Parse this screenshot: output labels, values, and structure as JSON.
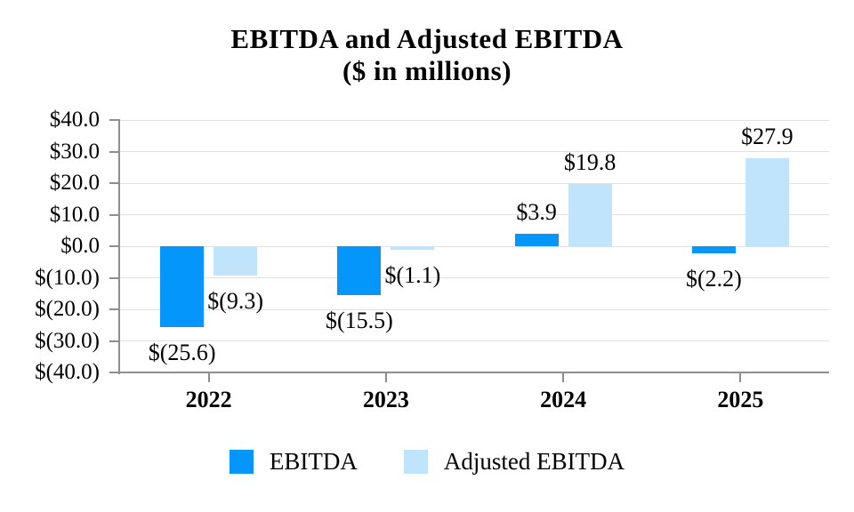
{
  "chart_data": {
    "type": "bar",
    "title": "EBITDA and Adjusted EBITDA",
    "subtitle": "($ in millions)",
    "categories": [
      "2022",
      "2023",
      "2024",
      "2025"
    ],
    "series": [
      {
        "name": "EBITDA",
        "color": "#0496FB",
        "values": [
          -25.6,
          -15.5,
          3.9,
          -2.2
        ],
        "data_labels": [
          "$(25.6)",
          "$(15.5)",
          "$3.9",
          "$(2.2)"
        ]
      },
      {
        "name": "Adjusted EBITDA",
        "color": "#BFE4FC",
        "values": [
          -9.3,
          -1.1,
          19.8,
          27.9
        ],
        "data_labels": [
          "$(9.3)",
          "$(1.1)",
          "$19.8",
          "$27.9"
        ]
      }
    ],
    "ylim": [
      -40,
      40
    ],
    "y_tick_step": 10,
    "y_tick_labels_top_to_bottom": [
      "$40.0",
      "$30.0",
      "$20.0",
      "$10.0",
      "$0.0",
      "$(10.0)",
      "$(20.0)",
      "$(30.0)",
      "$(40.0)"
    ],
    "grid": true,
    "legend_position": "bottom",
    "colors": {
      "axis": "#8E8E8E",
      "gridline": "#E0E0E0",
      "text": "#000000",
      "background": "#FFFFFF"
    }
  }
}
